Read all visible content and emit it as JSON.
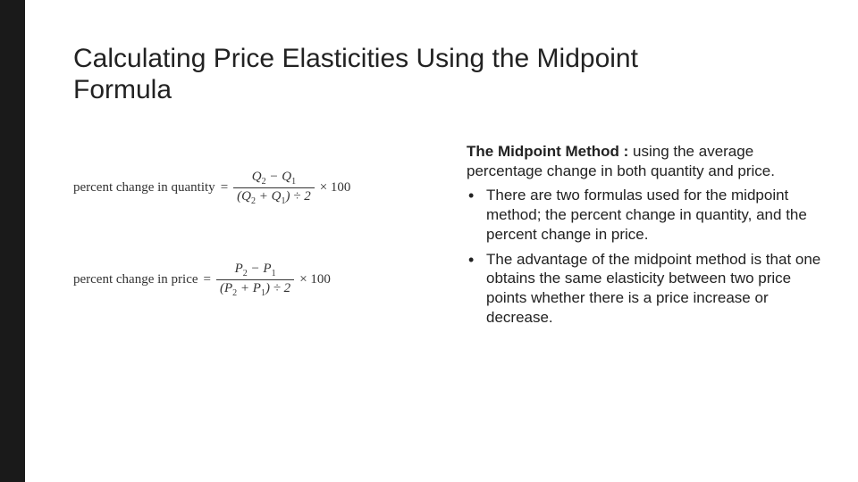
{
  "colors": {
    "left_bar": "#1a1a1a",
    "background": "#ffffff",
    "title_text": "#222222",
    "body_text": "#222222",
    "formula_text": "#333333"
  },
  "fonts": {
    "title_family": "Arial",
    "title_size_pt": 30,
    "title_weight": 400,
    "body_family": "Arial",
    "body_size_pt": 17,
    "formula_family": "Georgia",
    "formula_size_pt": 15
  },
  "title": "Calculating Price Elasticities Using the Midpoint Formula",
  "formulas": {
    "quantity": {
      "lhs": "percent change in quantity",
      "eq": "=",
      "num": "Q₂ − Q₁",
      "den": "(Q₂ + Q₁) ÷ 2",
      "times": "× 100"
    },
    "price": {
      "lhs": "percent change in price",
      "eq": "=",
      "num": "P₂ − P₁",
      "den": "(P₂ + P₁) ÷ 2",
      "times": "× 100"
    }
  },
  "text": {
    "intro_bold": "The Midpoint Method :",
    "intro_rest": " using the average percentage change in both quantity and price.",
    "bullets": [
      "There are two formulas used for the midpoint method; the percent change in quantity, and the percent change in price.",
      "The advantage of the midpoint method is that one obtains the same elasticity between two price points whether there is a price increase or decrease."
    ]
  }
}
